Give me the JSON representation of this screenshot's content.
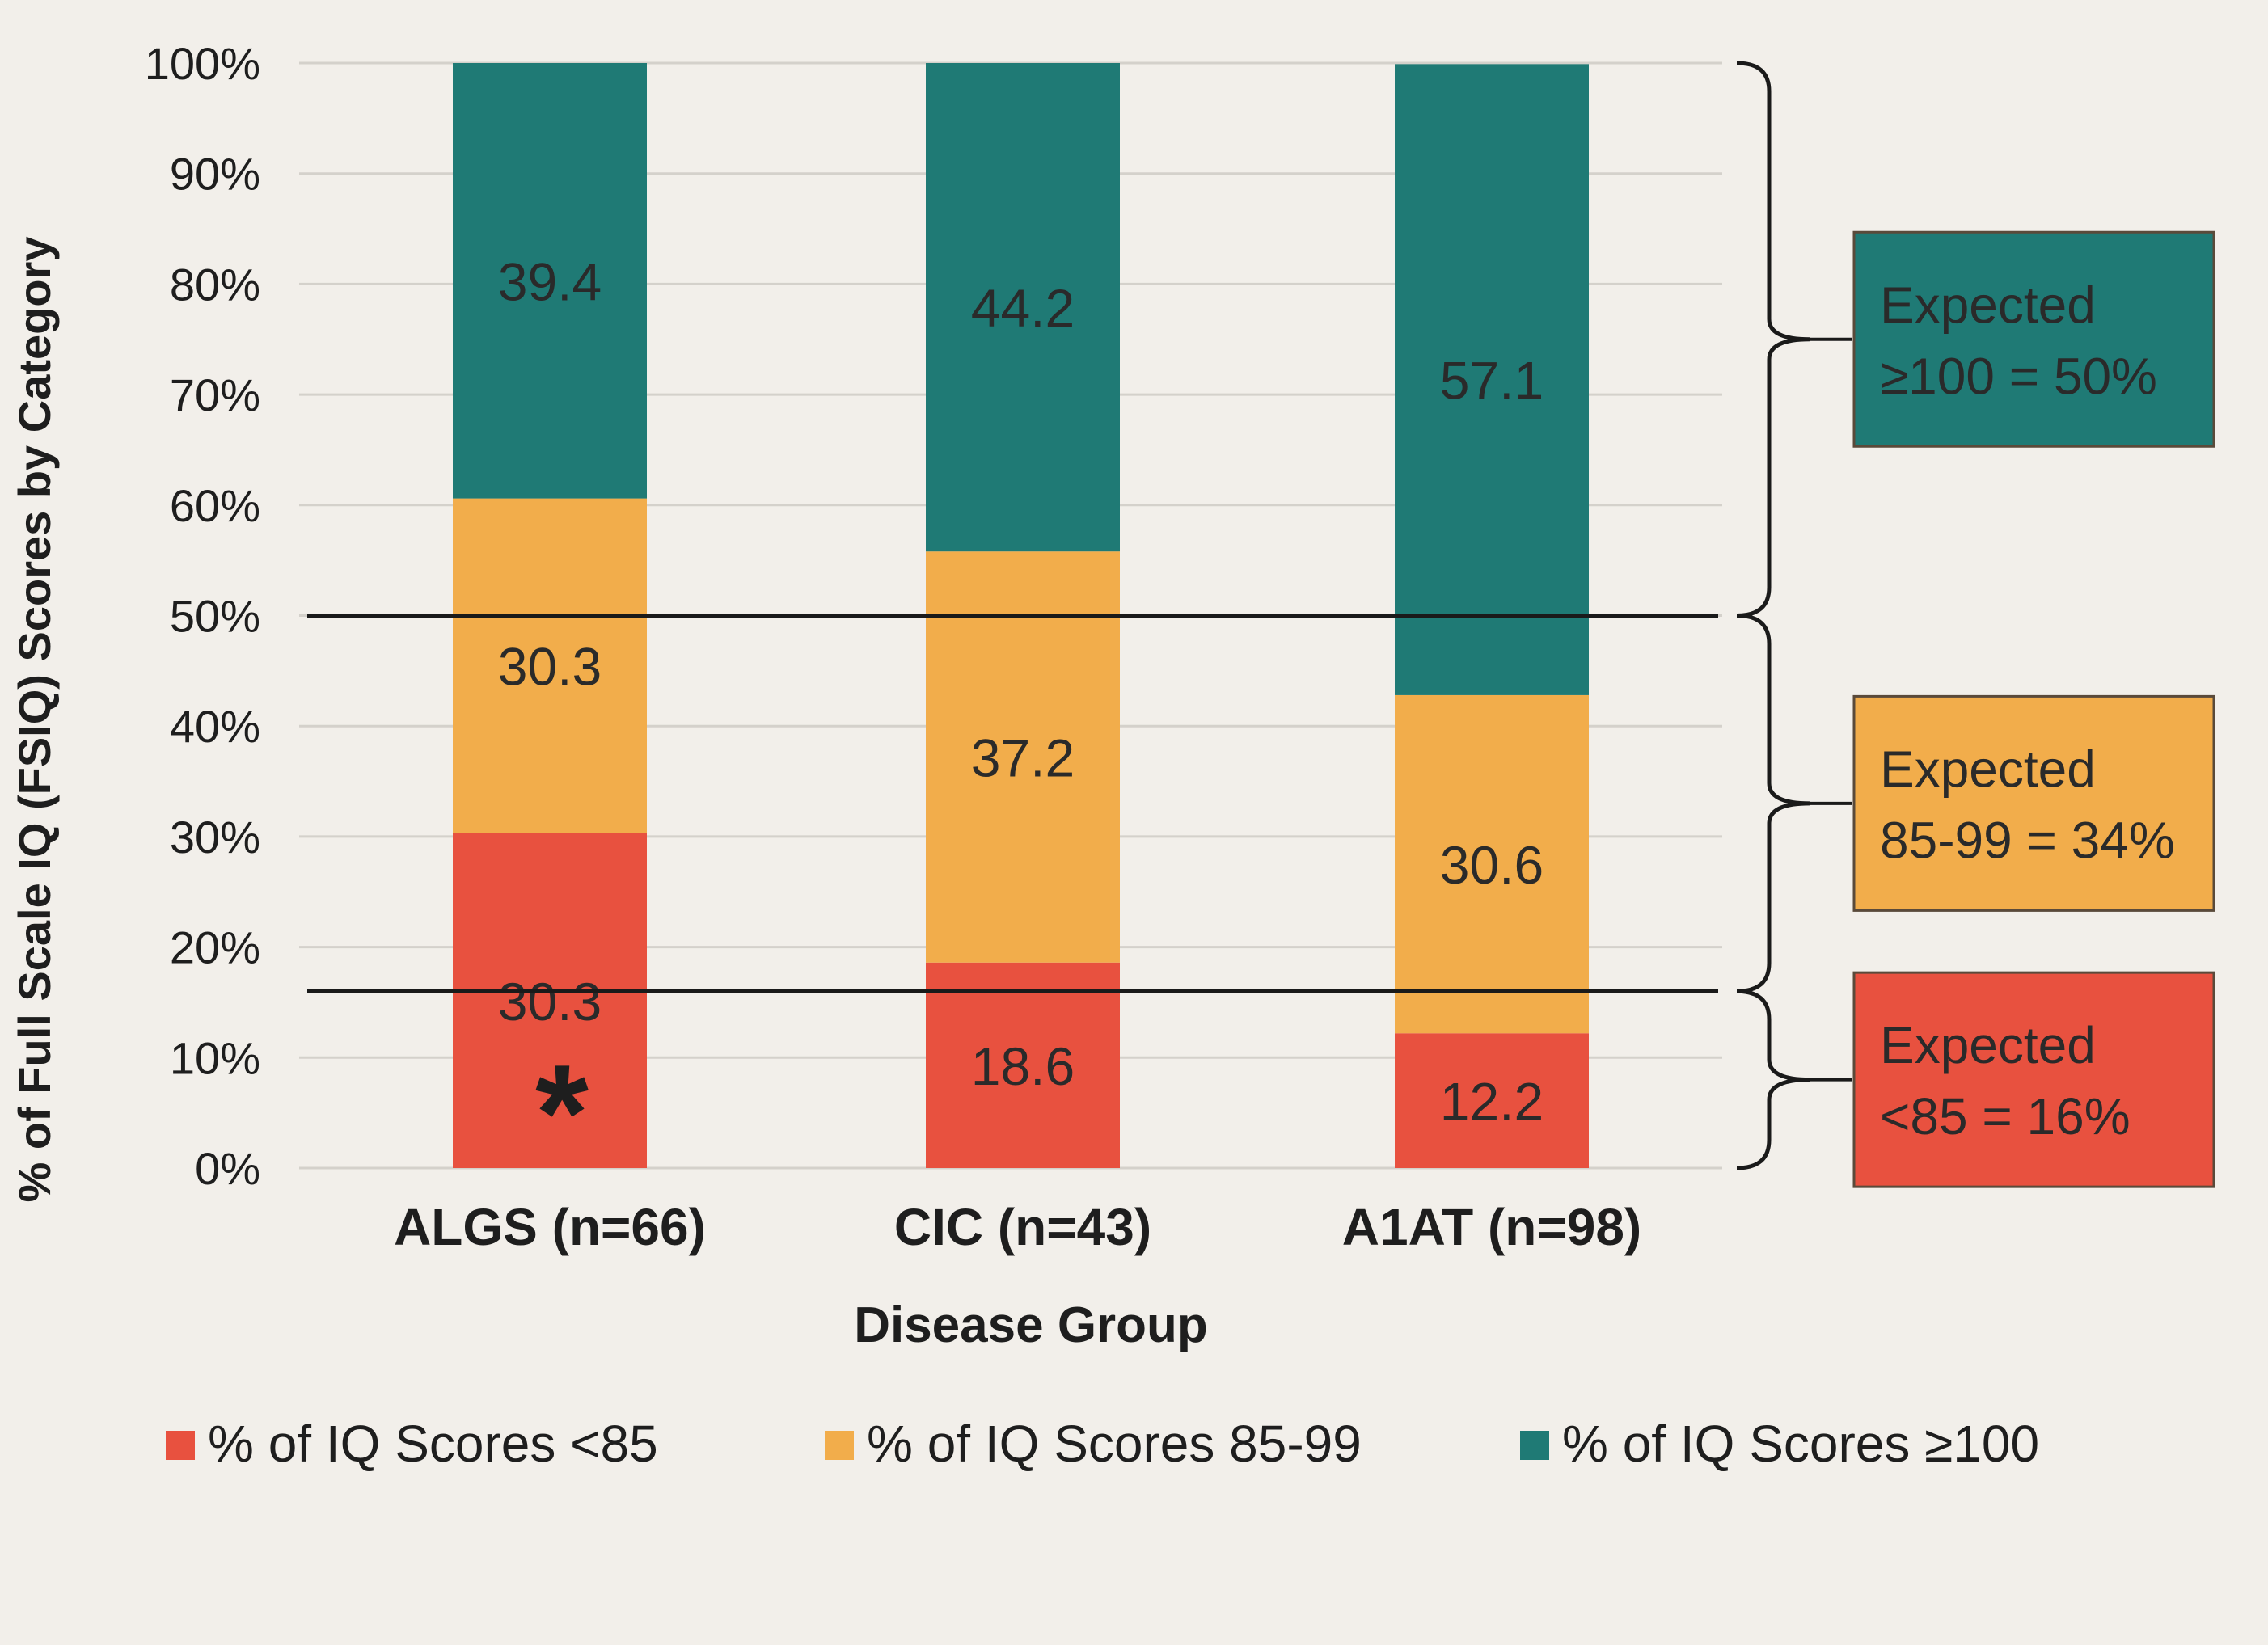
{
  "chart_data": {
    "type": "bar",
    "stacked": true,
    "categories": [
      "ALGS (n=66)",
      "CIC (n=43)",
      "A1AT (n=98)"
    ],
    "series": [
      {
        "name": "% of IQ Scores <85",
        "values": [
          30.3,
          18.6,
          12.2
        ],
        "labels": [
          "30.3",
          "18.6",
          "12.2"
        ],
        "color": "#e8513f"
      },
      {
        "name": "% of IQ Scores 85-99",
        "values": [
          30.3,
          37.2,
          30.6
        ],
        "labels": [
          "30.3",
          "37.2",
          "30.6"
        ],
        "color": "#f2ad4b"
      },
      {
        "name": "% of IQ Scores ≥100",
        "values": [
          39.4,
          44.2,
          57.1
        ],
        "labels": [
          "39.4",
          "44.2",
          "57.1"
        ],
        "color": "#1f7a75"
      }
    ],
    "annotations": {
      "asterisk": "*",
      "asterisk_category": "ALGS (n=66)"
    },
    "xlabel": "Disease Group",
    "ylabel": "% of  Full Scale IQ (FSIQ)  Scores by Category",
    "ylim": [
      0,
      100
    ],
    "yticks": [
      "0%",
      "10%",
      "20%",
      "30%",
      "40%",
      "50%",
      "60%",
      "70%",
      "80%",
      "90%",
      "100%"
    ],
    "grid": true,
    "reference_lines": [
      16,
      50
    ],
    "legend_position": "bottom",
    "expected_boxes": [
      {
        "line1": "Expected",
        "line2": "≥100 = 50%",
        "range": [
          50,
          100
        ],
        "color": "#1f7a75"
      },
      {
        "line1": "Expected",
        "line2": "85-99 = 34%",
        "range": [
          16,
          50
        ],
        "color": "#f2ad4b"
      },
      {
        "line1": "Expected",
        "line2": "<85 = 16%",
        "range": [
          0,
          16
        ],
        "color": "#e8513f"
      }
    ]
  }
}
